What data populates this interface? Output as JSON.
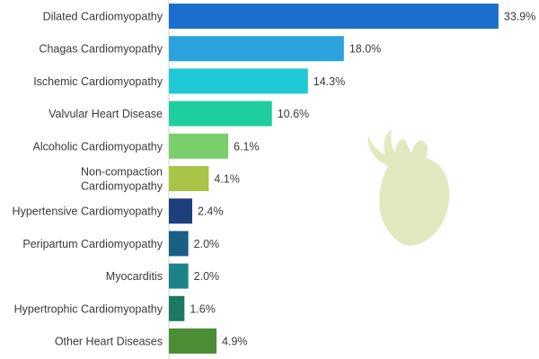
{
  "chart_data": {
    "type": "bar",
    "orientation": "horizontal",
    "categories": [
      "Dilated Cardiomyopathy",
      "Chagas Cardiomyopathy",
      "Ischemic Cardiomyopathy",
      "Valvular Heart Disease",
      "Alcoholic Cardiomyopathy",
      "Non-compaction Cardiomyopathy",
      "Hypertensive Cardiomyopathy",
      "Peripartum Cardiomyopathy",
      "Myocarditis",
      "Hypertrophic Cardiomyopathy",
      "Other Heart Diseases"
    ],
    "category_lines": [
      [
        "Dilated Cardiomyopathy"
      ],
      [
        "Chagas Cardiomyopathy"
      ],
      [
        "Ischemic Cardiomyopathy"
      ],
      [
        "Valvular Heart Disease"
      ],
      [
        "Alcoholic Cardiomyopathy"
      ],
      [
        "Non-compaction",
        "Cardiomyopathy"
      ],
      [
        "Hypertensive Cardiomyopathy"
      ],
      [
        "Peripartum Cardiomyopathy"
      ],
      [
        "Myocarditis"
      ],
      [
        "Hypertrophic Cardiomyopathy"
      ],
      [
        "Other Heart Diseases"
      ]
    ],
    "values": [
      33.9,
      18.0,
      14.3,
      10.6,
      6.1,
      4.1,
      2.4,
      2.0,
      2.0,
      1.6,
      4.9
    ],
    "value_labels": [
      "33.9%",
      "18.0%",
      "14.3%",
      "10.6%",
      "6.1%",
      "4.1%",
      "2.4%",
      "2.0%",
      "2.0%",
      "1.6%",
      "4.9%"
    ],
    "colors": [
      "#1a6fce",
      "#2ba3dc",
      "#1ec8d6",
      "#1fcea0",
      "#79cf6a",
      "#a8c548",
      "#1d3f7c",
      "#1a5f86",
      "#1c8389",
      "#1a7a62",
      "#4c8e36"
    ],
    "xlim": [
      0,
      34
    ],
    "grid": false,
    "legend": false,
    "title": "",
    "xlabel": "",
    "ylabel": ""
  },
  "decoration": {
    "icon": "heart-icon",
    "color": "#e1e9c1"
  }
}
